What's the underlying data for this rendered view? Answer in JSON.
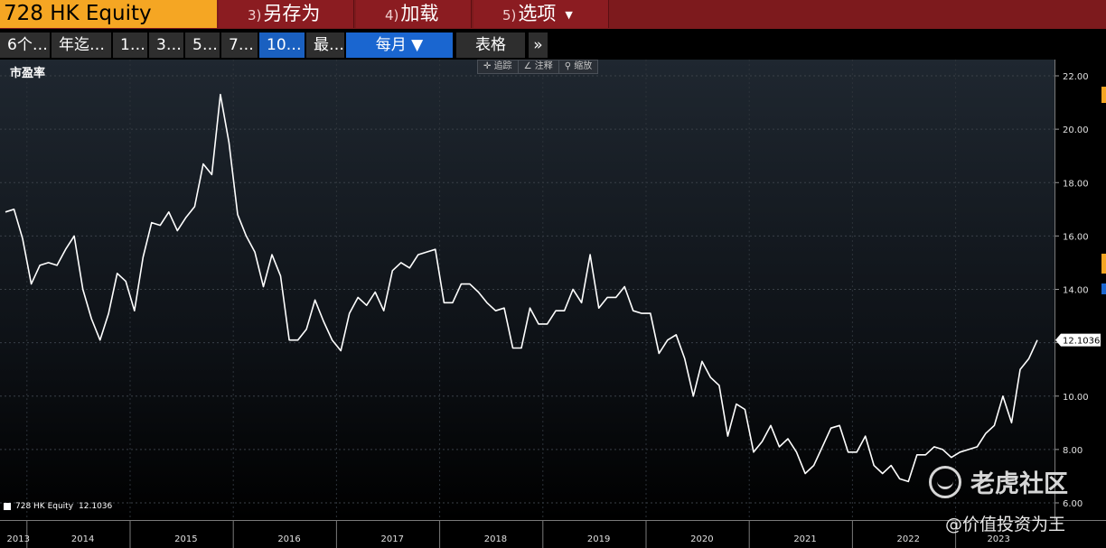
{
  "toolbar": {
    "security": "728 HK Equity",
    "buttons": [
      {
        "num": "3)",
        "label": "另存为"
      },
      {
        "num": "4)",
        "label": "加载"
      },
      {
        "num": "5)",
        "label": "选项"
      }
    ]
  },
  "range_bar": {
    "buttons": [
      "6个…",
      "年迄…",
      "1…",
      "3…",
      "5…",
      "7…",
      "10…",
      "最…"
    ],
    "active": "10…",
    "frequency": "每月 ▼",
    "table": "表格",
    "more": "»"
  },
  "chart_tools": [
    "追踪",
    "注释",
    "缩放"
  ],
  "watermark": {
    "brand": "老虎社区",
    "handle": "@价值投资为王"
  },
  "colors": {
    "toolbar": "#7d1a1d",
    "security": "#f5a623",
    "active": "#1a60c0",
    "line": "#ffffff"
  },
  "chart_data": {
    "type": "line",
    "title": "市盈率",
    "xlabel": "",
    "ylabel": "",
    "ylim": [
      6,
      22.5
    ],
    "y_ticks": [
      "22.00",
      "20.00",
      "18.00",
      "16.00",
      "14.00",
      "12.00",
      "10.00",
      "8.00",
      "6.00"
    ],
    "x_ticks": [
      "2013",
      "2014",
      "2015",
      "2016",
      "2017",
      "2018",
      "2019",
      "2020",
      "2021",
      "2022",
      "2023"
    ],
    "grid": true,
    "legend": "bottom-left",
    "last_value_label": "12.1036",
    "series": [
      {
        "name": "728 HK Equity",
        "last": "12.1036",
        "values": [
          16.9,
          17.0,
          15.9,
          14.2,
          14.9,
          15.0,
          14.9,
          15.5,
          16.0,
          14.0,
          12.9,
          12.1,
          13.1,
          14.6,
          14.3,
          13.2,
          15.2,
          16.5,
          16.4,
          16.9,
          16.2,
          16.7,
          17.1,
          18.7,
          18.3,
          21.3,
          19.5,
          16.8,
          16.0,
          15.4,
          14.1,
          15.3,
          14.5,
          12.1,
          12.1,
          12.5,
          13.6,
          12.8,
          12.1,
          11.7,
          13.1,
          13.7,
          13.4,
          13.9,
          13.2,
          14.7,
          15.0,
          14.8,
          15.3,
          15.4,
          15.5,
          13.5,
          13.5,
          14.2,
          14.2,
          13.9,
          13.5,
          13.2,
          13.3,
          11.8,
          11.8,
          13.3,
          12.7,
          12.7,
          13.2,
          13.2,
          14.0,
          13.5,
          15.3,
          13.3,
          13.7,
          13.7,
          14.1,
          13.2,
          13.1,
          13.1,
          11.6,
          12.1,
          12.3,
          11.4,
          10.0,
          11.3,
          10.7,
          10.4,
          8.5,
          9.7,
          9.5,
          7.9,
          8.3,
          8.9,
          8.1,
          8.4,
          7.9,
          7.1,
          7.4,
          8.1,
          8.8,
          8.9,
          7.9,
          7.9,
          8.5,
          7.4,
          7.1,
          7.4,
          6.9,
          6.8,
          7.8,
          7.8,
          8.1,
          8.0,
          7.7,
          7.9,
          8.0,
          8.1,
          8.6,
          8.9,
          10.0,
          9.0,
          11.0,
          11.4,
          12.1
        ]
      }
    ]
  }
}
